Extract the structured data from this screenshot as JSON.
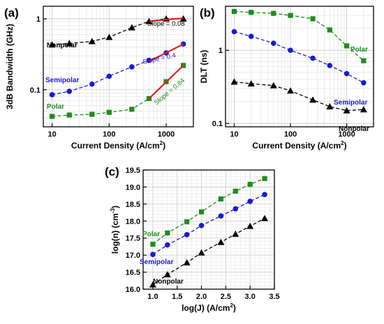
{
  "chart_data": [
    {
      "panel": "(a)",
      "type": "line",
      "xlabel": "Current Density (A/cm",
      "xlabel_sup": "2",
      "xlabel_end": ")",
      "ylabel": "3dB Bandwidth (GHz)",
      "xscale": "log",
      "yscale": "log",
      "xlim": [
        7,
        3000
      ],
      "ylim": [
        0.03,
        1.5
      ],
      "x_ticks": [
        10,
        100,
        1000
      ],
      "x_tick_labels": [
        "10",
        "100",
        "1000"
      ],
      "y_ticks": [
        0.1,
        1
      ],
      "y_tick_labels": [
        "0.1",
        "1"
      ],
      "grid": true,
      "series": [
        {
          "name": "Nonpolar",
          "color": "#000000",
          "marker": "triangle",
          "x": [
            10,
            20,
            50,
            100,
            250,
            500,
            1000,
            2000
          ],
          "y": [
            0.43,
            0.45,
            0.48,
            0.55,
            0.75,
            0.92,
            1.0,
            1.0
          ]
        },
        {
          "name": "Semipolar",
          "color": "#1a1ad6",
          "marker": "circle",
          "x": [
            10,
            20,
            50,
            100,
            250,
            500,
            1000,
            2000
          ],
          "y": [
            0.085,
            0.095,
            0.12,
            0.155,
            0.21,
            0.26,
            0.33,
            0.44
          ]
        },
        {
          "name": "Polar",
          "color": "#1e8c1e",
          "marker": "square",
          "x": [
            10,
            20,
            50,
            100,
            250,
            500,
            1000,
            2000
          ],
          "y": [
            0.042,
            0.044,
            0.045,
            0.048,
            0.053,
            0.075,
            0.13,
            0.22
          ]
        }
      ],
      "fit_lines": [
        {
          "label": "Slope = 0.08",
          "x": [
            500,
            2000
          ],
          "y": [
            0.92,
            1.02
          ],
          "label_color": "#000000"
        },
        {
          "label": "Slope = 0.4",
          "x": [
            500,
            2000
          ],
          "y": [
            0.25,
            0.44
          ],
          "label_color": "#1a1ad6"
        },
        {
          "label": "Slope = 0.84",
          "x": [
            500,
            2000
          ],
          "y": [
            0.075,
            0.22
          ],
          "label_color": "#1e8c1e"
        }
      ],
      "fit_color": "#e02020"
    },
    {
      "panel": "(b)",
      "type": "line",
      "xlabel": "Current Density (A/cm",
      "xlabel_sup": "2",
      "xlabel_end": ")",
      "ylabel": "DLT (ns)",
      "xscale": "log",
      "yscale": "log",
      "xlim": [
        7,
        3000
      ],
      "ylim": [
        0.09,
        4
      ],
      "x_ticks": [
        10,
        100,
        1000
      ],
      "x_tick_labels": [
        "10",
        "100",
        "1000"
      ],
      "y_ticks": [
        0.1,
        1
      ],
      "y_tick_labels": [
        "0.1",
        "1"
      ],
      "grid": true,
      "series": [
        {
          "name": "Polar",
          "color": "#1e8c1e",
          "marker": "square",
          "x": [
            10,
            20,
            50,
            100,
            250,
            500,
            1000,
            2000
          ],
          "y": [
            3.4,
            3.3,
            3.2,
            3.0,
            2.7,
            1.9,
            1.15,
            0.72
          ]
        },
        {
          "name": "Semipolar",
          "color": "#1a1ad6",
          "marker": "circle",
          "x": [
            10,
            20,
            50,
            100,
            250,
            500,
            1000,
            2000
          ],
          "y": [
            1.8,
            1.55,
            1.25,
            1.0,
            0.78,
            0.62,
            0.48,
            0.36
          ]
        },
        {
          "name": "Nonpolar",
          "color": "#000000",
          "marker": "triangle",
          "x": [
            10,
            20,
            50,
            100,
            250,
            500,
            1000,
            2000
          ],
          "y": [
            0.37,
            0.35,
            0.33,
            0.28,
            0.21,
            0.17,
            0.15,
            0.155
          ]
        }
      ]
    },
    {
      "panel": "(c)",
      "type": "line",
      "xlabel": "log(J) (A/cm",
      "xlabel_sup": "2",
      "xlabel_end": ")",
      "ylabel": "log(n) (cm",
      "ylabel_sup": "-3",
      "ylabel_end": ")",
      "xscale": "linear",
      "yscale": "linear",
      "xlim": [
        0.8,
        3.5
      ],
      "ylim": [
        16.0,
        19.5
      ],
      "x_ticks": [
        1.0,
        1.5,
        2.0,
        2.5,
        3.0,
        3.5
      ],
      "x_tick_labels": [
        "1.0",
        "1.5",
        "2.0",
        "2.5",
        "3.0",
        "3.5"
      ],
      "y_ticks": [
        16.0,
        16.5,
        17.0,
        17.5,
        18.0,
        18.5,
        19.0,
        19.5
      ],
      "y_tick_labels": [
        "16.0",
        "16.5",
        "17.0",
        "17.5",
        "18.0",
        "18.5",
        "19.0",
        "19.5"
      ],
      "grid": true,
      "series": [
        {
          "name": "Polar",
          "color": "#1e8c1e",
          "marker": "square",
          "x": [
            1.0,
            1.3,
            1.7,
            2.0,
            2.4,
            2.7,
            3.0,
            3.3
          ],
          "y": [
            17.32,
            17.65,
            17.98,
            18.27,
            18.65,
            18.88,
            19.08,
            19.25
          ]
        },
        {
          "name": "Semipolar",
          "color": "#1a1ad6",
          "marker": "circle",
          "x": [
            1.0,
            1.3,
            1.7,
            2.0,
            2.4,
            2.7,
            3.0,
            3.3
          ],
          "y": [
            17.02,
            17.3,
            17.6,
            17.87,
            18.15,
            18.36,
            18.58,
            18.78
          ]
        },
        {
          "name": "Nonpolar",
          "color": "#000000",
          "marker": "triangle",
          "x": [
            1.0,
            1.3,
            1.7,
            2.0,
            2.4,
            2.7,
            3.0,
            3.3
          ],
          "y": [
            16.13,
            16.43,
            16.78,
            17.07,
            17.38,
            17.62,
            17.85,
            18.08
          ]
        }
      ]
    }
  ]
}
